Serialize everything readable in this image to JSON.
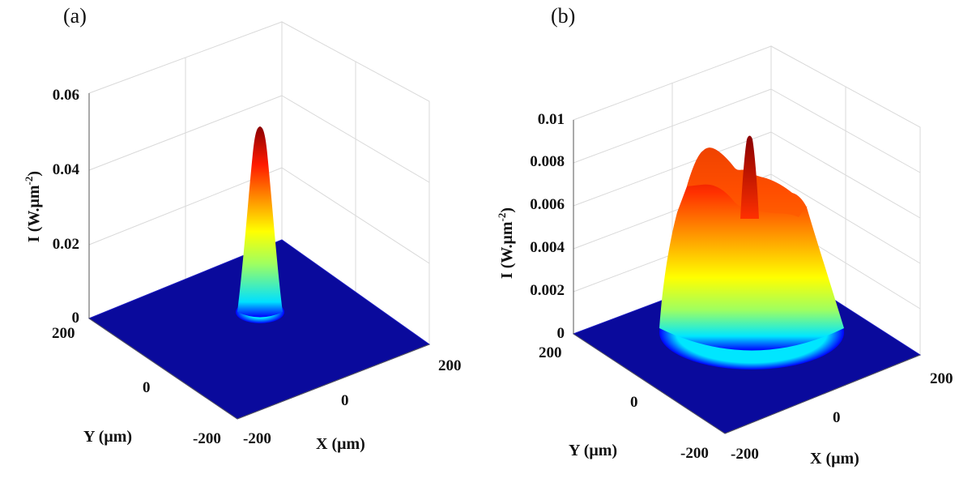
{
  "chart_data": [
    {
      "panel_label": "(a)",
      "type": "surface",
      "zlabel": "I (W.μm",
      "zlabel_exponent": "-2",
      "zlabel_close": ")",
      "xlabel": "X (μm)",
      "ylabel": "Y (μm)",
      "z_ticks": [
        "0",
        "0.02",
        "0.04",
        "0.06"
      ],
      "x_ticks": [
        "-200",
        "0",
        "200"
      ],
      "y_ticks": [
        "-200",
        "0",
        "200"
      ],
      "xlim": [
        -200,
        200
      ],
      "ylim": [
        -200,
        200
      ],
      "zlim": [
        0,
        0.06
      ],
      "profile": "narrow gaussian peak centered at origin",
      "peak_intensity": 0.051,
      "peak_width_um": 25,
      "colormap": [
        "#00008f",
        "#0000ff",
        "#00ffff",
        "#ffff00",
        "#ff8000",
        "#ff0000",
        "#800000"
      ]
    },
    {
      "panel_label": "(b)",
      "type": "surface",
      "zlabel": "I (W.μm",
      "zlabel_exponent": "-2",
      "zlabel_close": ")",
      "xlabel": "X (μm)",
      "ylabel": "Y (μm)",
      "z_ticks": [
        "0",
        "0.002",
        "0.004",
        "0.006",
        "0.008",
        "0.01"
      ],
      "x_ticks": [
        "-200",
        "0",
        "200"
      ],
      "y_ticks": [
        "-200",
        "0",
        "200"
      ],
      "xlim": [
        -200,
        200
      ],
      "ylim": [
        -200,
        200
      ],
      "zlim": [
        0,
        0.01
      ],
      "profile": "flat-top broad beam with central spike",
      "plateau_intensity": 0.0068,
      "central_peak_intensity": 0.0092,
      "beam_radius_um": 120,
      "colormap": [
        "#00008f",
        "#0000ff",
        "#00ffff",
        "#ffff00",
        "#ff8000",
        "#ff0000",
        "#800000"
      ]
    }
  ]
}
